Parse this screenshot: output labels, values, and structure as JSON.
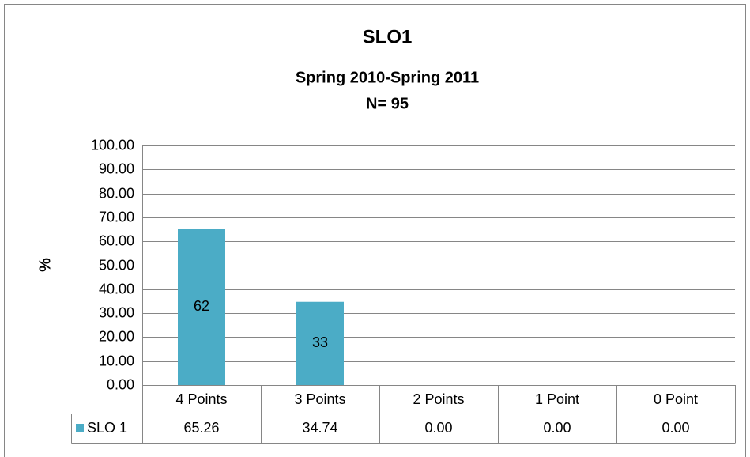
{
  "chart_data": {
    "type": "bar",
    "title": "SLO1",
    "subtitle": "Spring 2010-Spring 2011",
    "note": "N= 95",
    "y_label": "%",
    "categories": [
      "4 Points",
      "3 Points",
      "2 Points",
      "1 Point",
      "0 Point"
    ],
    "series": [
      {
        "name": "SLO 1",
        "color": "#4bacc6",
        "values": [
          65.26,
          34.74,
          0,
          0,
          0
        ],
        "value_labels": [
          "65.26",
          "34.74",
          "0.00",
          "0.00",
          "0.00"
        ],
        "counts": [
          62,
          33,
          null,
          null,
          null
        ]
      }
    ],
    "ylim": [
      0,
      100
    ],
    "yticks": [
      {
        "value": 0,
        "label": "0.00"
      },
      {
        "value": 10,
        "label": "10.00"
      },
      {
        "value": 20,
        "label": "20.00"
      },
      {
        "value": 30,
        "label": "30.00"
      },
      {
        "value": 40,
        "label": "40.00"
      },
      {
        "value": 50,
        "label": "50.00"
      },
      {
        "value": 60,
        "label": "60.00"
      },
      {
        "value": 70,
        "label": "70.00"
      },
      {
        "value": 80,
        "label": "80.00"
      },
      {
        "value": 90,
        "label": "90.00"
      },
      {
        "value": 100,
        "label": "100.00"
      }
    ],
    "grid": true
  }
}
